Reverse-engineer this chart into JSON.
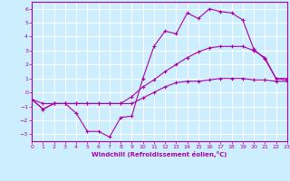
{
  "background_color": "#cceeff",
  "grid_color": "#ffffff",
  "line_color": "#aa00aa",
  "xlabel": "Windchill (Refroidissement éolien,°C)",
  "xlim": [
    0,
    23
  ],
  "ylim": [
    -3.5,
    6.5
  ],
  "xticks": [
    0,
    1,
    2,
    3,
    4,
    5,
    6,
    7,
    8,
    9,
    10,
    11,
    12,
    13,
    14,
    15,
    16,
    17,
    18,
    19,
    20,
    21,
    22,
    23
  ],
  "yticks": [
    -3,
    -2,
    -1,
    0,
    1,
    2,
    3,
    4,
    5,
    6
  ],
  "series": [
    {
      "x": [
        0,
        1,
        2,
        3,
        4,
        5,
        6,
        7,
        8,
        9,
        10,
        11,
        12,
        13,
        14,
        15,
        16,
        17,
        18,
        19,
        20,
        21,
        22,
        23
      ],
      "y": [
        -0.5,
        -1.2,
        -0.8,
        -0.8,
        -1.5,
        -2.8,
        -2.8,
        -3.2,
        -1.8,
        -1.7,
        1.0,
        3.3,
        4.4,
        4.2,
        5.7,
        5.3,
        6.0,
        5.8,
        5.7,
        5.2,
        3.1,
        2.4,
        1.0,
        1.0
      ]
    },
    {
      "x": [
        0,
        1,
        2,
        3,
        4,
        5,
        6,
        7,
        8,
        9,
        10,
        11,
        12,
        13,
        14,
        15,
        16,
        17,
        18,
        19,
        20,
        21,
        22,
        23
      ],
      "y": [
        -0.5,
        -1.2,
        -0.8,
        -0.8,
        -0.8,
        -0.8,
        -0.8,
        -0.8,
        -0.8,
        -0.8,
        -0.4,
        0.0,
        0.4,
        0.7,
        0.8,
        0.8,
        0.9,
        1.0,
        1.0,
        1.0,
        0.9,
        0.9,
        0.8,
        0.8
      ]
    },
    {
      "x": [
        0,
        1,
        2,
        3,
        4,
        5,
        6,
        7,
        8,
        9,
        10,
        11,
        12,
        13,
        14,
        15,
        16,
        17,
        18,
        19,
        20,
        21,
        22,
        23
      ],
      "y": [
        -0.5,
        -0.8,
        -0.8,
        -0.8,
        -0.8,
        -0.8,
        -0.8,
        -0.8,
        -0.8,
        -0.3,
        0.4,
        0.9,
        1.5,
        2.0,
        2.5,
        2.9,
        3.2,
        3.3,
        3.3,
        3.3,
        3.0,
        2.5,
        1.0,
        0.9
      ]
    }
  ]
}
